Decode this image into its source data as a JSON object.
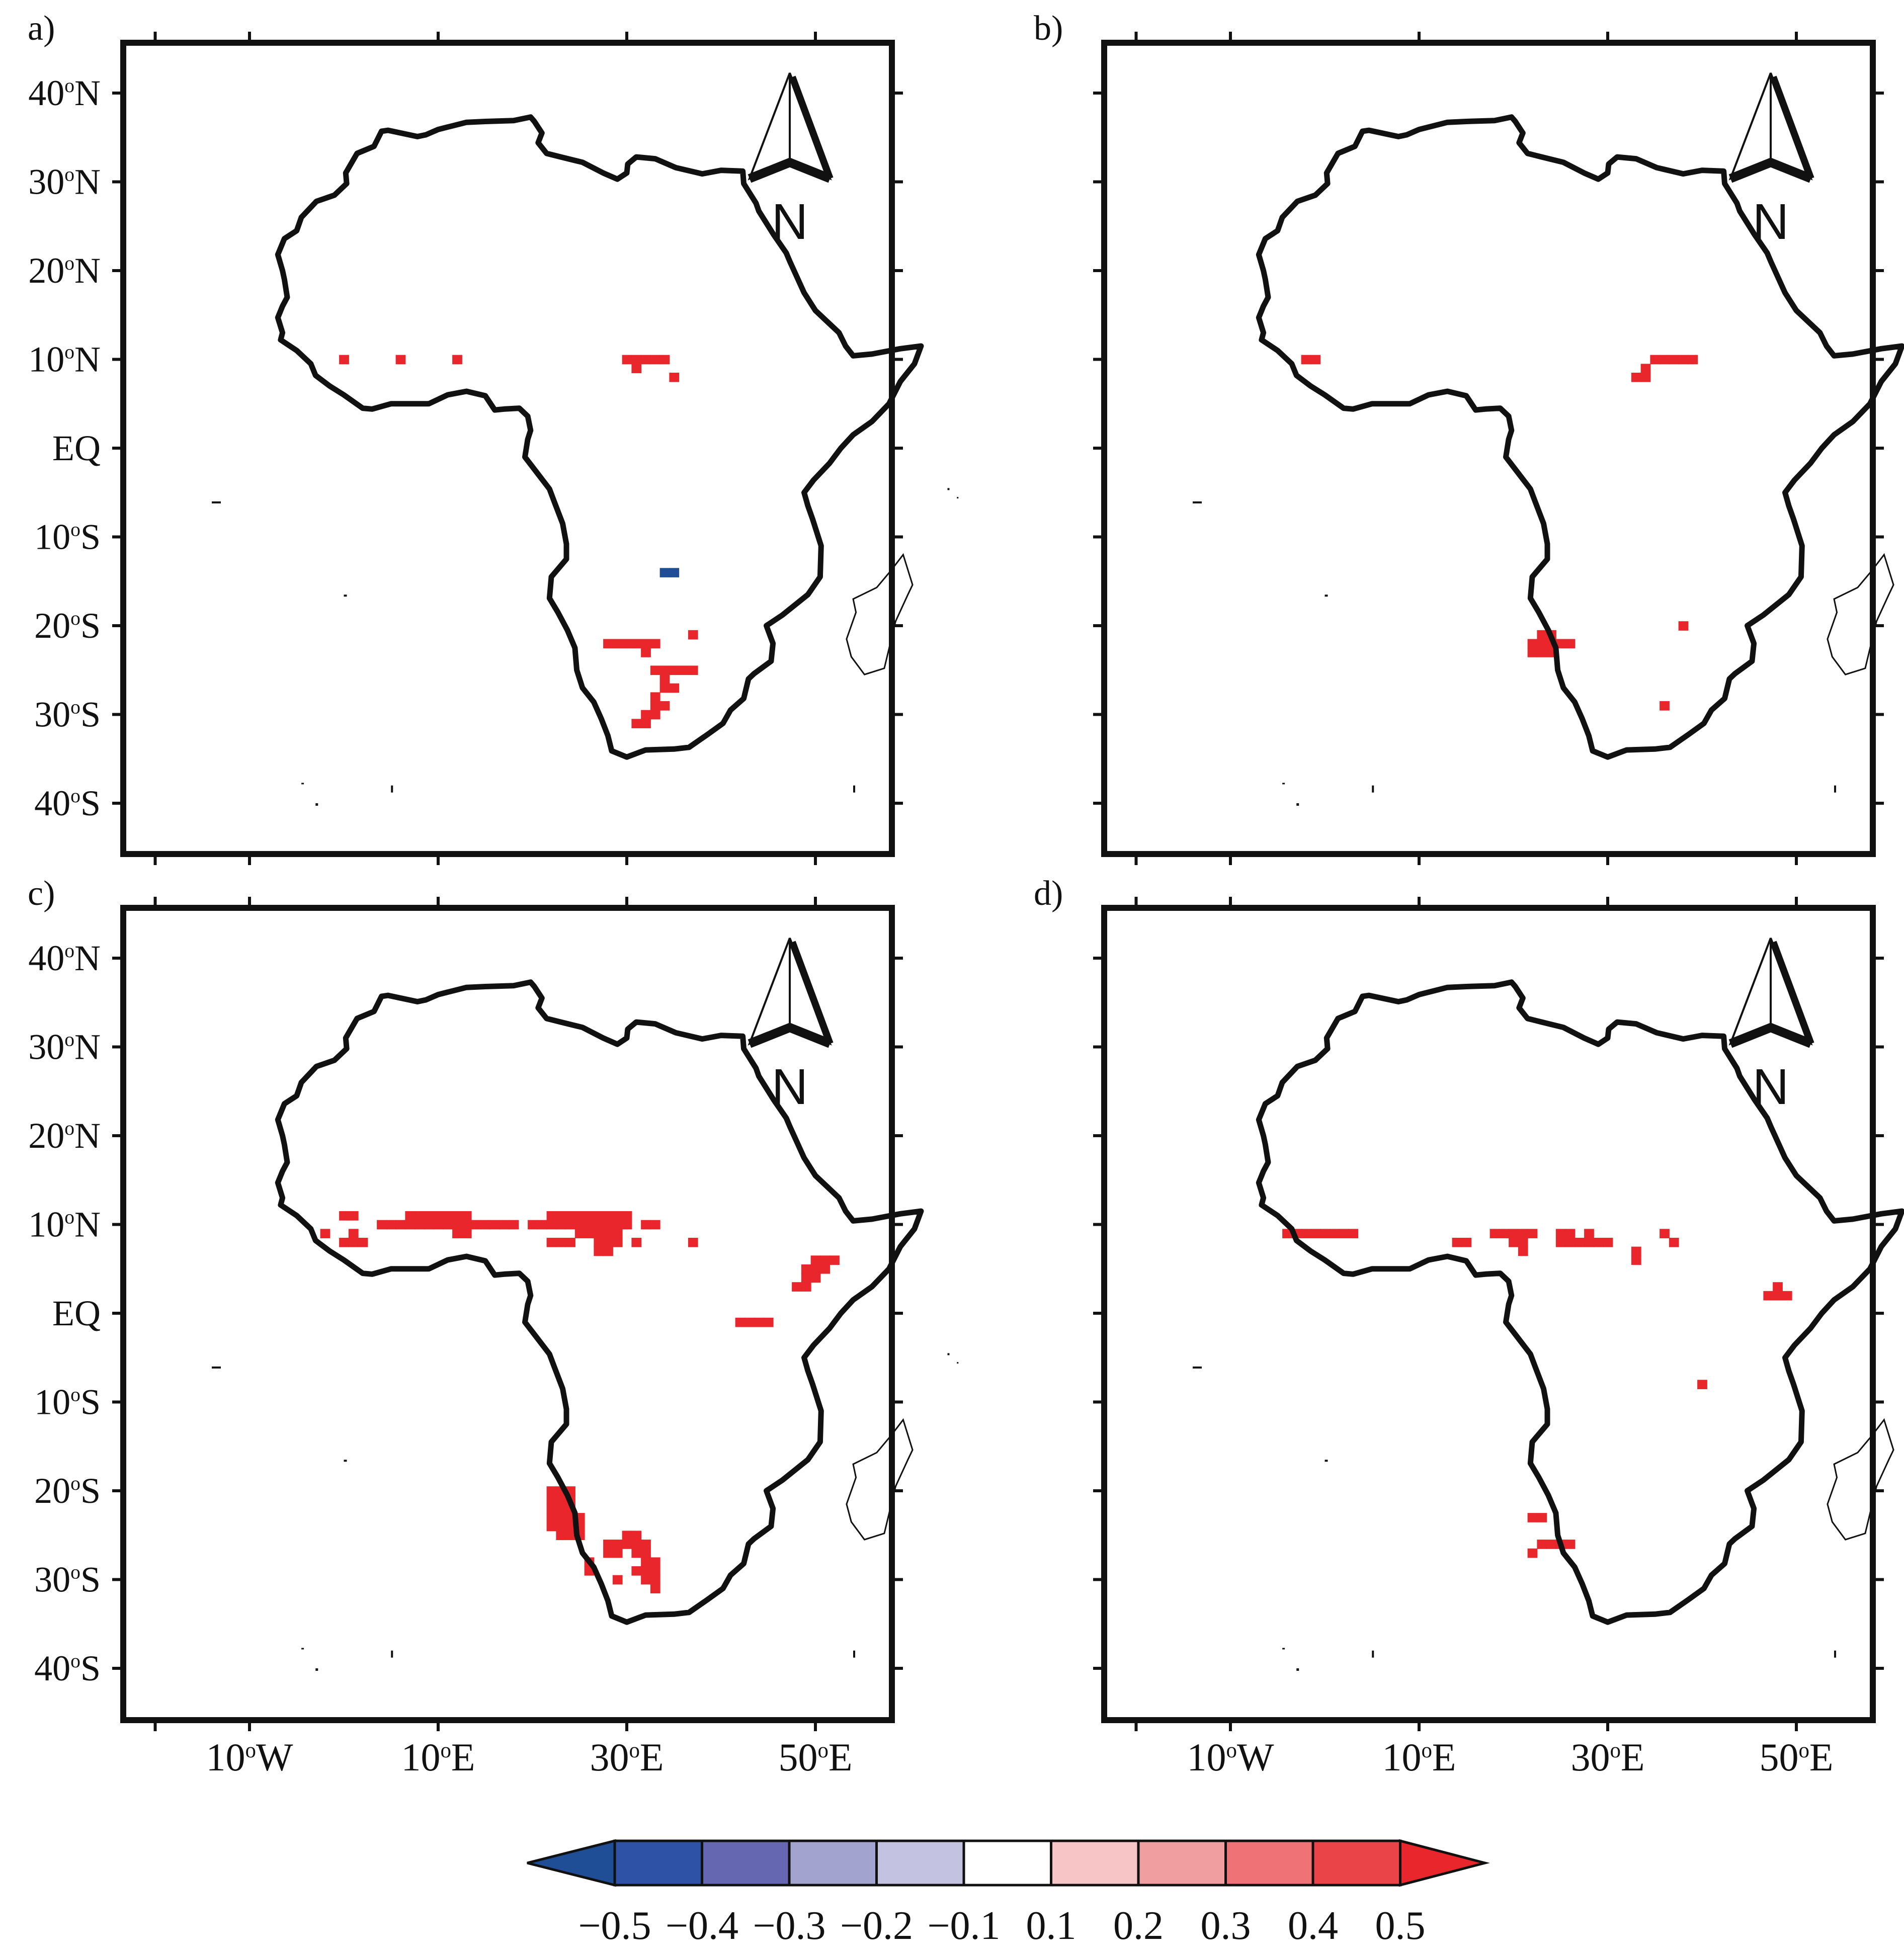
{
  "panels": [
    {
      "label": "a)",
      "red_cells": [
        [
          -10,
          10
        ],
        [
          -4,
          10
        ],
        [
          2,
          10
        ],
        [
          20,
          10
        ],
        [
          21,
          10
        ],
        [
          22,
          10
        ],
        [
          23,
          10
        ],
        [
          24,
          10
        ],
        [
          21,
          9
        ],
        [
          25,
          8
        ],
        [
          18,
          -22
        ],
        [
          19,
          -22
        ],
        [
          20,
          -22
        ],
        [
          21,
          -22
        ],
        [
          22,
          -22
        ],
        [
          23,
          -22
        ],
        [
          22,
          -23
        ],
        [
          27,
          -21
        ],
        [
          23,
          -25
        ],
        [
          24,
          -25
        ],
        [
          25,
          -25
        ],
        [
          26,
          -25
        ],
        [
          27,
          -25
        ],
        [
          24,
          -26
        ],
        [
          24,
          -27
        ],
        [
          25,
          -27
        ],
        [
          23,
          -28
        ],
        [
          23,
          -29
        ],
        [
          24,
          -29
        ],
        [
          22,
          -30
        ],
        [
          23,
          -30
        ],
        [
          21,
          -31
        ],
        [
          22,
          -31
        ]
      ],
      "blue_cells": [
        [
          24,
          -14
        ],
        [
          25,
          -14
        ]
      ]
    },
    {
      "label": "b)",
      "red_cells": [
        [
          -12,
          10
        ],
        [
          -11,
          10
        ],
        [
          25,
          10
        ],
        [
          26,
          10
        ],
        [
          27,
          10
        ],
        [
          28,
          10
        ],
        [
          29,
          10
        ],
        [
          24,
          9
        ],
        [
          23,
          8
        ],
        [
          24,
          8
        ],
        [
          13,
          -21
        ],
        [
          14,
          -21
        ],
        [
          12,
          -22
        ],
        [
          13,
          -22
        ],
        [
          14,
          -22
        ],
        [
          15,
          -22
        ],
        [
          16,
          -22
        ],
        [
          12,
          -23
        ],
        [
          13,
          -23
        ],
        [
          14,
          -23
        ],
        [
          28,
          -20
        ],
        [
          26,
          -29
        ]
      ],
      "blue_cells": []
    },
    {
      "label": "c)",
      "red_cells": [
        [
          -10,
          11
        ],
        [
          -9,
          11
        ],
        [
          -9,
          9
        ],
        [
          -10,
          8
        ],
        [
          -9,
          8
        ],
        [
          -8,
          8
        ],
        [
          -12,
          9
        ],
        [
          -6,
          10
        ],
        [
          -5,
          10
        ],
        [
          -4,
          10
        ],
        [
          -3,
          10
        ],
        [
          -2,
          10
        ],
        [
          -1,
          10
        ],
        [
          0,
          10
        ],
        [
          1,
          10
        ],
        [
          2,
          10
        ],
        [
          3,
          10
        ],
        [
          4,
          10
        ],
        [
          5,
          10
        ],
        [
          6,
          10
        ],
        [
          7,
          10
        ],
        [
          8,
          10
        ],
        [
          -3,
          11
        ],
        [
          -2,
          11
        ],
        [
          -1,
          11
        ],
        [
          0,
          11
        ],
        [
          1,
          11
        ],
        [
          2,
          11
        ],
        [
          3,
          11
        ],
        [
          2,
          9
        ],
        [
          3,
          9
        ],
        [
          10,
          10
        ],
        [
          11,
          10
        ],
        [
          12,
          10
        ],
        [
          13,
          10
        ],
        [
          14,
          10
        ],
        [
          15,
          10
        ],
        [
          16,
          10
        ],
        [
          17,
          10
        ],
        [
          18,
          10
        ],
        [
          19,
          10
        ],
        [
          20,
          10
        ],
        [
          12,
          11
        ],
        [
          13,
          11
        ],
        [
          14,
          11
        ],
        [
          15,
          11
        ],
        [
          16,
          11
        ],
        [
          17,
          11
        ],
        [
          18,
          11
        ],
        [
          19,
          11
        ],
        [
          20,
          11
        ],
        [
          15,
          9
        ],
        [
          16,
          9
        ],
        [
          17,
          9
        ],
        [
          18,
          9
        ],
        [
          19,
          9
        ],
        [
          12,
          8
        ],
        [
          13,
          8
        ],
        [
          14,
          8
        ],
        [
          17,
          8
        ],
        [
          18,
          8
        ],
        [
          19,
          8
        ],
        [
          17,
          7
        ],
        [
          18,
          7
        ],
        [
          22,
          10
        ],
        [
          23,
          10
        ],
        [
          21,
          8
        ],
        [
          27,
          8
        ],
        [
          40,
          6
        ],
        [
          41,
          6
        ],
        [
          42,
          6
        ],
        [
          39,
          5
        ],
        [
          40,
          5
        ],
        [
          41,
          5
        ],
        [
          39,
          4
        ],
        [
          40,
          4
        ],
        [
          38,
          3
        ],
        [
          39,
          3
        ],
        [
          32,
          -1
        ],
        [
          33,
          -1
        ],
        [
          34,
          -1
        ],
        [
          35,
          -1
        ],
        [
          12,
          -20
        ],
        [
          13,
          -20
        ],
        [
          14,
          -20
        ],
        [
          12,
          -21
        ],
        [
          13,
          -21
        ],
        [
          14,
          -21
        ],
        [
          12,
          -22
        ],
        [
          13,
          -22
        ],
        [
          14,
          -22
        ],
        [
          12,
          -23
        ],
        [
          13,
          -23
        ],
        [
          14,
          -23
        ],
        [
          15,
          -23
        ],
        [
          12,
          -24
        ],
        [
          13,
          -24
        ],
        [
          14,
          -24
        ],
        [
          15,
          -24
        ],
        [
          13,
          -25
        ],
        [
          14,
          -25
        ],
        [
          15,
          -25
        ],
        [
          20,
          -25
        ],
        [
          21,
          -25
        ],
        [
          18,
          -26
        ],
        [
          19,
          -26
        ],
        [
          20,
          -26
        ],
        [
          21,
          -26
        ],
        [
          22,
          -26
        ],
        [
          18,
          -27
        ],
        [
          19,
          -27
        ],
        [
          21,
          -27
        ],
        [
          22,
          -27
        ],
        [
          22,
          -28
        ],
        [
          23,
          -28
        ],
        [
          21,
          -29
        ],
        [
          22,
          -29
        ],
        [
          23,
          -29
        ],
        [
          22,
          -30
        ],
        [
          23,
          -30
        ],
        [
          23,
          -31
        ],
        [
          16,
          -28
        ],
        [
          16,
          -29
        ],
        [
          19,
          -30
        ]
      ],
      "blue_cells": []
    },
    {
      "label": "d)",
      "red_cells": [
        [
          -14,
          9
        ],
        [
          -13,
          9
        ],
        [
          -12,
          9
        ],
        [
          -11,
          9
        ],
        [
          -10,
          9
        ],
        [
          -9,
          9
        ],
        [
          -8,
          9
        ],
        [
          -7,
          9
        ],
        [
          4,
          8
        ],
        [
          5,
          8
        ],
        [
          8,
          9
        ],
        [
          9,
          9
        ],
        [
          10,
          9
        ],
        [
          11,
          9
        ],
        [
          12,
          9
        ],
        [
          10,
          8
        ],
        [
          11,
          8
        ],
        [
          11,
          7
        ],
        [
          15,
          9
        ],
        [
          16,
          9
        ],
        [
          15,
          8
        ],
        [
          16,
          8
        ],
        [
          17,
          8
        ],
        [
          18,
          8
        ],
        [
          19,
          8
        ],
        [
          20,
          8
        ],
        [
          18,
          9
        ],
        [
          23,
          7
        ],
        [
          23,
          6
        ],
        [
          26,
          9
        ],
        [
          27,
          8
        ],
        [
          38,
          3
        ],
        [
          37,
          2
        ],
        [
          38,
          2
        ],
        [
          39,
          2
        ],
        [
          30,
          -8
        ],
        [
          12,
          -23
        ],
        [
          13,
          -23
        ],
        [
          13,
          -26
        ],
        [
          14,
          -26
        ],
        [
          15,
          -26
        ],
        [
          16,
          -26
        ],
        [
          12,
          -27
        ]
      ],
      "blue_cells": []
    }
  ],
  "y_axis_labels": [
    "40°N",
    "30°N",
    "20°N",
    "10°N",
    "EQ",
    "10°S",
    "20°S",
    "30°S",
    "40°S"
  ],
  "x_axis_labels": [
    "10°W",
    "10°E",
    "30°E",
    "50°E"
  ],
  "north_arrow": {
    "letter": "N"
  },
  "colorbar": {
    "labels": [
      "−0.5",
      "−0.4",
      "−0.3",
      "−0.2",
      "−0.1",
      "0.1",
      "0.2",
      "0.3",
      "0.4",
      "0.5"
    ],
    "colors": [
      "#1f4e96",
      "#2d52a6",
      "#6568b0",
      "#a2a3cf",
      "#c3c3e1",
      "#ffffff",
      "#f7c5c6",
      "#f19ea1",
      "#ee7276",
      "#eb4448",
      "#e8262b"
    ]
  }
}
